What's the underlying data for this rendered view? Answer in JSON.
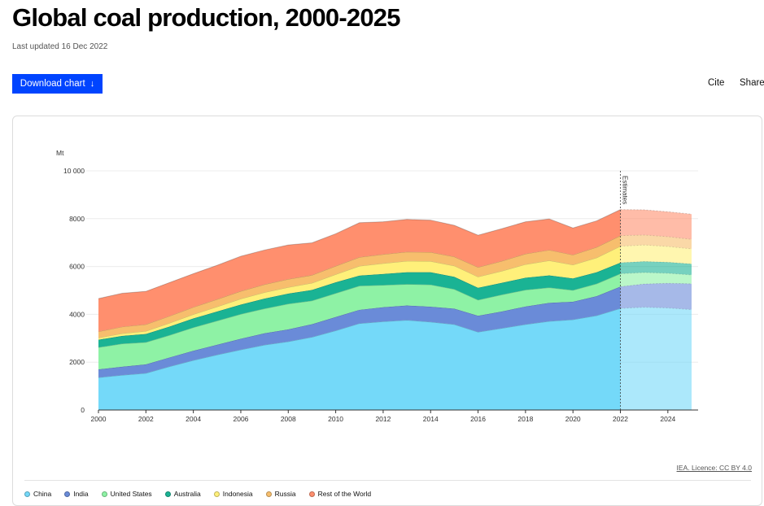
{
  "header": {
    "title": "Global coal production, 2000-2025",
    "updated": "Last updated 16 Dec 2022",
    "download_label": "Download chart",
    "download_arrow": "↓",
    "cite_label": "Cite",
    "share_label": "Share"
  },
  "footer": {
    "licence": "IEA. Licence: CC BY 4.0"
  },
  "chart_data": {
    "type": "area",
    "stacked": true,
    "title": "",
    "xlabel": "",
    "ylabel": "Mt",
    "xlim": [
      2000,
      2025
    ],
    "ylim": [
      0,
      10000
    ],
    "yticks": [
      0,
      2000,
      4000,
      6000,
      8000,
      10000
    ],
    "ytick_labels": [
      "0",
      "2000",
      "4000",
      "6000",
      "8000",
      "10 000"
    ],
    "xticks": [
      2000,
      2002,
      2004,
      2006,
      2008,
      2010,
      2012,
      2014,
      2016,
      2018,
      2020,
      2022,
      2024
    ],
    "xtick_labels": [
      "2000",
      "2002",
      "2004",
      "2006",
      "2008",
      "2010",
      "2012",
      "2014",
      "2016",
      "2018",
      "2020",
      "2022",
      "2024"
    ],
    "estimates_from": 2022,
    "estimates_label": "Estimates",
    "grid": "horizontal",
    "legend_position": "bottom",
    "x": [
      2000,
      2001,
      2002,
      2003,
      2004,
      2005,
      2006,
      2007,
      2008,
      2009,
      2010,
      2011,
      2012,
      2013,
      2014,
      2015,
      2016,
      2017,
      2018,
      2019,
      2020,
      2021,
      2022,
      2023,
      2024,
      2025
    ],
    "series": [
      {
        "name": "China",
        "color": "#74d9f9",
        "values": [
          1360,
          1460,
          1540,
          1820,
          2080,
          2310,
          2520,
          2720,
          2860,
          3050,
          3320,
          3620,
          3700,
          3760,
          3680,
          3580,
          3260,
          3420,
          3580,
          3710,
          3780,
          3950,
          4250,
          4300,
          4270,
          4200
        ]
      },
      {
        "name": "India",
        "color": "#6a8bd8",
        "values": [
          340,
          350,
          370,
          380,
          400,
          420,
          460,
          490,
          510,
          540,
          570,
          570,
          600,
          610,
          640,
          660,
          680,
          700,
          750,
          770,
          750,
          810,
          910,
          970,
          1030,
          1080
        ]
      },
      {
        "name": "United States",
        "color": "#8ef2a5",
        "values": [
          920,
          960,
          920,
          930,
          970,
          1000,
          1030,
          1030,
          1070,
          980,
          990,
          1000,
          920,
          890,
          920,
          810,
          660,
          700,
          690,
          640,
          480,
          520,
          540,
          480,
          420,
          370
        ]
      },
      {
        "name": "Australia",
        "color": "#1ab394",
        "values": [
          320,
          330,
          350,
          360,
          380,
          390,
          400,
          420,
          430,
          450,
          460,
          430,
          470,
          500,
          520,
          520,
          510,
          500,
          510,
          510,
          490,
          480,
          460,
          460,
          460,
          460
        ]
      },
      {
        "name": "Indonesia",
        "color": "#fff07a",
        "values": [
          80,
          100,
          120,
          150,
          170,
          200,
          240,
          260,
          260,
          290,
          330,
          400,
          440,
          470,
          460,
          460,
          460,
          490,
          560,
          620,
          570,
          610,
          690,
          690,
          660,
          630
        ]
      },
      {
        "name": "Russia",
        "color": "#f7be6d",
        "values": [
          260,
          280,
          280,
          290,
          300,
          310,
          320,
          330,
          340,
          330,
          350,
          370,
          380,
          380,
          380,
          380,
          400,
          420,
          440,
          440,
          420,
          440,
          440,
          420,
          410,
          400
        ]
      },
      {
        "name": "Rest of the World",
        "color": "#ff8f6e",
        "values": [
          1380,
          1400,
          1380,
          1400,
          1400,
          1420,
          1460,
          1440,
          1430,
          1350,
          1350,
          1440,
          1360,
          1360,
          1340,
          1310,
          1340,
          1350,
          1340,
          1300,
          1120,
          1100,
          1090,
          1050,
          1040,
          1050
        ]
      }
    ]
  }
}
